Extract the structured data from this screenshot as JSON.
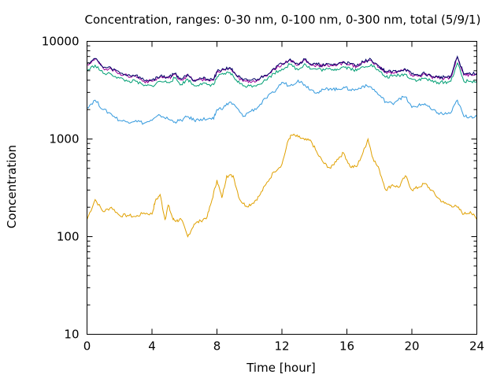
{
  "chart_data": {
    "type": "line",
    "title": "Concentration, ranges: 0-30 nm, 0-100 nm, 0-300 nm, total (5/9/1)",
    "xlabel": "Time [hour]",
    "ylabel": "Concentration",
    "xlim": [
      0,
      24
    ],
    "ylim": [
      10,
      10000
    ],
    "yscale": "log",
    "grid": false,
    "legend": "none",
    "xticks": [
      0,
      4,
      8,
      12,
      16,
      20,
      24
    ],
    "xtick_labels": [
      "0",
      "4",
      "8",
      "12",
      "16",
      "20",
      "24"
    ],
    "yticks": [
      10,
      100,
      1000,
      10000
    ],
    "ytick_labels": [
      "10",
      "100",
      "1000",
      "10000"
    ],
    "series": [
      {
        "color": "#e0a000",
        "points": [
          [
            0,
            150
          ],
          [
            0.5,
            240
          ],
          [
            1,
            180
          ],
          [
            1.5,
            200
          ],
          [
            2,
            165
          ],
          [
            2.5,
            165
          ],
          [
            3,
            160
          ],
          [
            3.5,
            175
          ],
          [
            4,
            170
          ],
          [
            4.2,
            230
          ],
          [
            4.5,
            270
          ],
          [
            4.8,
            150
          ],
          [
            5,
            210
          ],
          [
            5.3,
            150
          ],
          [
            5.5,
            145
          ],
          [
            5.8,
            150
          ],
          [
            6.2,
            100
          ],
          [
            6.6,
            135
          ],
          [
            7,
            145
          ],
          [
            7.4,
            160
          ],
          [
            7.7,
            240
          ],
          [
            8,
            380
          ],
          [
            8.3,
            250
          ],
          [
            8.6,
            420
          ],
          [
            9,
            420
          ],
          [
            9.4,
            240
          ],
          [
            9.8,
            205
          ],
          [
            10.2,
            220
          ],
          [
            10.6,
            260
          ],
          [
            11,
            340
          ],
          [
            11.5,
            460
          ],
          [
            12,
            550
          ],
          [
            12.4,
            980
          ],
          [
            12.6,
            1100
          ],
          [
            13,
            1050
          ],
          [
            13.4,
            980
          ],
          [
            13.8,
            950
          ],
          [
            14.2,
            700
          ],
          [
            14.6,
            560
          ],
          [
            15,
            500
          ],
          [
            15.4,
            620
          ],
          [
            15.8,
            720
          ],
          [
            16.2,
            520
          ],
          [
            16.6,
            520
          ],
          [
            17,
            730
          ],
          [
            17.3,
            1000
          ],
          [
            17.6,
            640
          ],
          [
            18,
            480
          ],
          [
            18.4,
            300
          ],
          [
            18.8,
            340
          ],
          [
            19.2,
            320
          ],
          [
            19.6,
            420
          ],
          [
            20,
            300
          ],
          [
            20.4,
            320
          ],
          [
            20.8,
            350
          ],
          [
            21.2,
            300
          ],
          [
            21.6,
            250
          ],
          [
            22,
            220
          ],
          [
            22.4,
            210
          ],
          [
            22.8,
            200
          ],
          [
            23.2,
            170
          ],
          [
            23.6,
            180
          ],
          [
            24,
            150
          ]
        ]
      },
      {
        "color": "#3399dd",
        "points": [
          [
            0,
            2100
          ],
          [
            0.5,
            2500
          ],
          [
            1,
            2000
          ],
          [
            1.5,
            1800
          ],
          [
            2,
            1550
          ],
          [
            2.5,
            1500
          ],
          [
            3,
            1550
          ],
          [
            3.5,
            1450
          ],
          [
            4,
            1550
          ],
          [
            4.5,
            1750
          ],
          [
            5,
            1600
          ],
          [
            5.4,
            1500
          ],
          [
            5.8,
            1550
          ],
          [
            6.2,
            1700
          ],
          [
            6.6,
            1550
          ],
          [
            7,
            1600
          ],
          [
            7.4,
            1600
          ],
          [
            7.8,
            1600
          ],
          [
            8,
            2000
          ],
          [
            8.4,
            2100
          ],
          [
            8.8,
            2400
          ],
          [
            9.2,
            2100
          ],
          [
            9.6,
            1700
          ],
          [
            10,
            1900
          ],
          [
            10.5,
            2100
          ],
          [
            11,
            2600
          ],
          [
            11.5,
            3000
          ],
          [
            12,
            3800
          ],
          [
            12.5,
            3500
          ],
          [
            13,
            4000
          ],
          [
            13.4,
            3600
          ],
          [
            13.8,
            3200
          ],
          [
            14.2,
            3000
          ],
          [
            14.6,
            3200
          ],
          [
            15,
            3300
          ],
          [
            15.4,
            3200
          ],
          [
            15.8,
            3400
          ],
          [
            16.2,
            3200
          ],
          [
            16.6,
            3200
          ],
          [
            17,
            3500
          ],
          [
            17.5,
            3400
          ],
          [
            18,
            2800
          ],
          [
            18.4,
            2400
          ],
          [
            18.8,
            2300
          ],
          [
            19.2,
            2600
          ],
          [
            19.6,
            2700
          ],
          [
            20,
            2100
          ],
          [
            20.4,
            2200
          ],
          [
            20.8,
            2300
          ],
          [
            21.2,
            2000
          ],
          [
            21.6,
            1850
          ],
          [
            22,
            1800
          ],
          [
            22.4,
            1850
          ],
          [
            22.8,
            2500
          ],
          [
            23.2,
            1700
          ],
          [
            23.6,
            1700
          ],
          [
            24,
            1700
          ]
        ]
      },
      {
        "color": "#009e73",
        "points": [
          [
            0,
            5000
          ],
          [
            0.5,
            5700
          ],
          [
            1,
            4700
          ],
          [
            1.5,
            4600
          ],
          [
            2,
            4200
          ],
          [
            2.5,
            3900
          ],
          [
            3,
            3900
          ],
          [
            3.5,
            3500
          ],
          [
            4,
            3500
          ],
          [
            4.5,
            3900
          ],
          [
            5,
            3800
          ],
          [
            5.4,
            4200
          ],
          [
            5.8,
            3600
          ],
          [
            6.2,
            4100
          ],
          [
            6.6,
            3500
          ],
          [
            7,
            3700
          ],
          [
            7.4,
            3600
          ],
          [
            7.8,
            3600
          ],
          [
            8,
            4300
          ],
          [
            8.4,
            4600
          ],
          [
            8.8,
            4800
          ],
          [
            9.2,
            4000
          ],
          [
            9.6,
            3500
          ],
          [
            10,
            3500
          ],
          [
            10.5,
            3600
          ],
          [
            11,
            4000
          ],
          [
            11.5,
            4700
          ],
          [
            12,
            5200
          ],
          [
            12.5,
            5800
          ],
          [
            13,
            5100
          ],
          [
            13.4,
            5900
          ],
          [
            13.8,
            5200
          ],
          [
            14.2,
            5200
          ],
          [
            14.6,
            5100
          ],
          [
            15,
            5200
          ],
          [
            15.4,
            5200
          ],
          [
            15.8,
            5500
          ],
          [
            16.2,
            5300
          ],
          [
            16.6,
            5000
          ],
          [
            17,
            5500
          ],
          [
            17.5,
            5800
          ],
          [
            18,
            4900
          ],
          [
            18.4,
            4300
          ],
          [
            18.8,
            4400
          ],
          [
            19.2,
            4500
          ],
          [
            19.6,
            4600
          ],
          [
            20,
            4100
          ],
          [
            20.4,
            4000
          ],
          [
            20.8,
            4200
          ],
          [
            21.2,
            3900
          ],
          [
            21.6,
            3800
          ],
          [
            22,
            3800
          ],
          [
            22.4,
            3900
          ],
          [
            22.8,
            6000
          ],
          [
            23.2,
            3900
          ],
          [
            23.6,
            3900
          ],
          [
            24,
            3900
          ]
        ]
      },
      {
        "color": "#990099",
        "points": [
          [
            0,
            5800
          ],
          [
            0.5,
            6600
          ],
          [
            1,
            5300
          ],
          [
            1.5,
            5200
          ],
          [
            2,
            4700
          ],
          [
            2.5,
            4400
          ],
          [
            3,
            4400
          ],
          [
            3.5,
            3900
          ],
          [
            4,
            3900
          ],
          [
            4.5,
            4300
          ],
          [
            5,
            4200
          ],
          [
            5.4,
            4600
          ],
          [
            5.8,
            4000
          ],
          [
            6.2,
            4500
          ],
          [
            6.6,
            3900
          ],
          [
            7,
            4100
          ],
          [
            7.4,
            4000
          ],
          [
            7.8,
            4000
          ],
          [
            8,
            4800
          ],
          [
            8.4,
            5100
          ],
          [
            8.8,
            5300
          ],
          [
            9.2,
            4400
          ],
          [
            9.6,
            3900
          ],
          [
            10,
            3900
          ],
          [
            10.5,
            4000
          ],
          [
            11,
            4400
          ],
          [
            11.5,
            5200
          ],
          [
            12,
            5800
          ],
          [
            12.5,
            6500
          ],
          [
            13,
            5700
          ],
          [
            13.4,
            6500
          ],
          [
            13.8,
            5700
          ],
          [
            14.2,
            5700
          ],
          [
            14.6,
            5600
          ],
          [
            15,
            5700
          ],
          [
            15.4,
            5700
          ],
          [
            15.8,
            6100
          ],
          [
            16.2,
            5800
          ],
          [
            16.6,
            5500
          ],
          [
            17,
            6100
          ],
          [
            17.5,
            6400
          ],
          [
            18,
            5400
          ],
          [
            18.4,
            4800
          ],
          [
            18.8,
            4800
          ],
          [
            19.2,
            4900
          ],
          [
            19.6,
            5100
          ],
          [
            20,
            4500
          ],
          [
            20.4,
            4400
          ],
          [
            20.8,
            4600
          ],
          [
            21.2,
            4300
          ],
          [
            21.6,
            4200
          ],
          [
            22,
            4200
          ],
          [
            22.4,
            4300
          ],
          [
            22.8,
            6900
          ],
          [
            23.2,
            4500
          ],
          [
            23.6,
            4600
          ],
          [
            24,
            4600
          ]
        ]
      },
      {
        "color": "#000066",
        "points": [
          [
            0,
            5900
          ],
          [
            0.5,
            6700
          ],
          [
            1,
            5400
          ],
          [
            1.5,
            5300
          ],
          [
            2,
            4800
          ],
          [
            2.5,
            4500
          ],
          [
            3,
            4500
          ],
          [
            3.5,
            4000
          ],
          [
            4,
            4000
          ],
          [
            4.5,
            4400
          ],
          [
            5,
            4300
          ],
          [
            5.4,
            4700
          ],
          [
            5.8,
            4100
          ],
          [
            6.2,
            4600
          ],
          [
            6.6,
            4000
          ],
          [
            7,
            4200
          ],
          [
            7.4,
            4100
          ],
          [
            7.8,
            4100
          ],
          [
            8,
            4900
          ],
          [
            8.4,
            5200
          ],
          [
            8.8,
            5400
          ],
          [
            9.2,
            4500
          ],
          [
            9.6,
            4000
          ],
          [
            10,
            4000
          ],
          [
            10.5,
            4100
          ],
          [
            11,
            4500
          ],
          [
            11.5,
            5300
          ],
          [
            12,
            5900
          ],
          [
            12.5,
            6600
          ],
          [
            13,
            5800
          ],
          [
            13.4,
            6600
          ],
          [
            13.8,
            5800
          ],
          [
            14.2,
            5800
          ],
          [
            14.6,
            5700
          ],
          [
            15,
            5800
          ],
          [
            15.4,
            5800
          ],
          [
            15.8,
            6200
          ],
          [
            16.2,
            5900
          ],
          [
            16.6,
            5600
          ],
          [
            17,
            6200
          ],
          [
            17.5,
            6500
          ],
          [
            18,
            5500
          ],
          [
            18.4,
            4900
          ],
          [
            18.8,
            4900
          ],
          [
            19.2,
            5000
          ],
          [
            19.6,
            5200
          ],
          [
            20,
            4600
          ],
          [
            20.4,
            4500
          ],
          [
            20.8,
            4700
          ],
          [
            21.2,
            4400
          ],
          [
            21.6,
            4300
          ],
          [
            22,
            4300
          ],
          [
            22.4,
            4400
          ],
          [
            22.8,
            7000
          ],
          [
            23.2,
            4600
          ],
          [
            23.6,
            4700
          ],
          [
            24,
            4700
          ]
        ]
      }
    ]
  }
}
